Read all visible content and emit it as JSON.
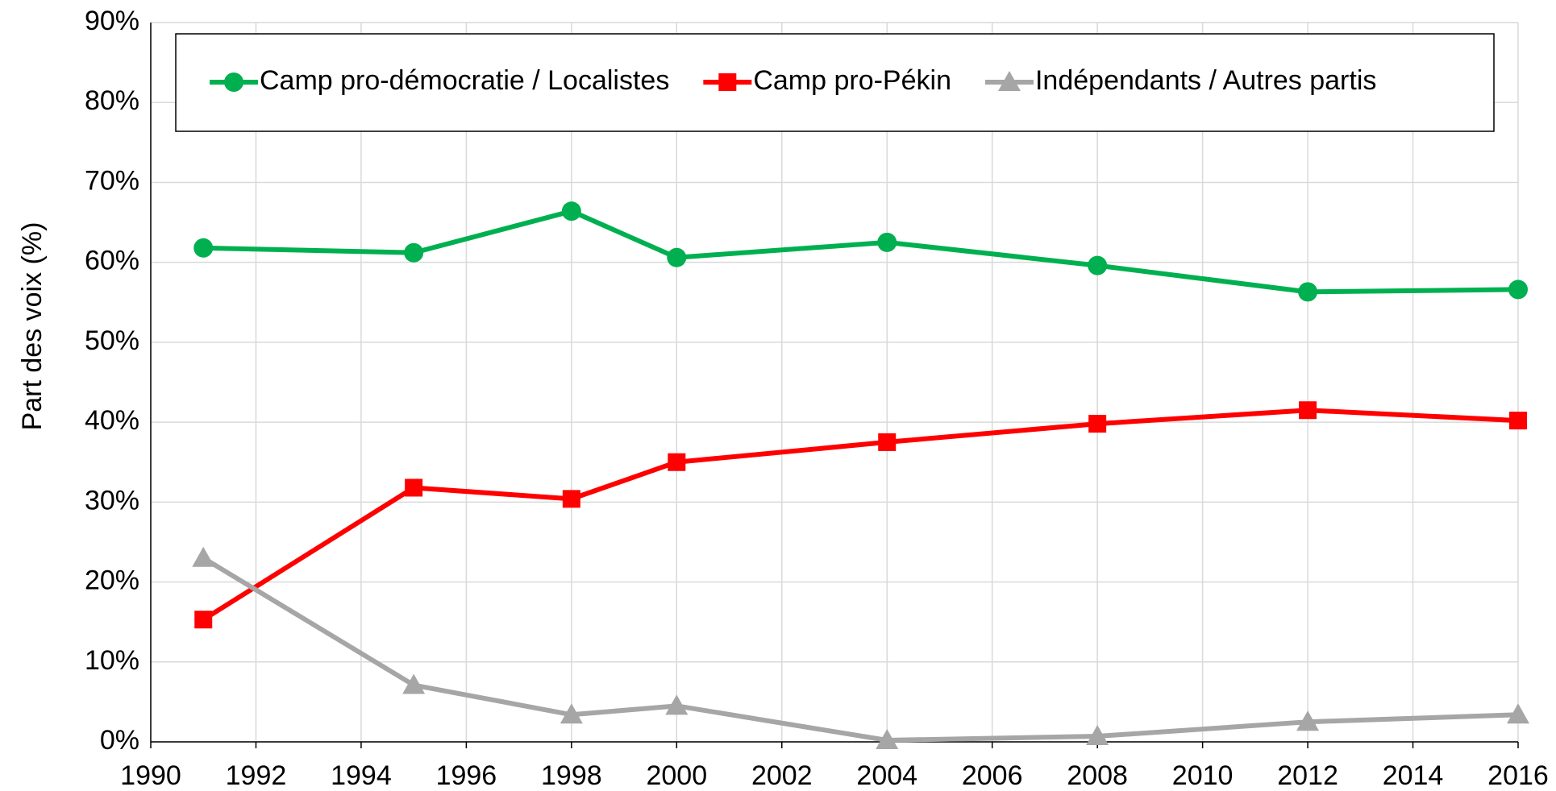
{
  "chart_data": {
    "type": "line",
    "y_label": "Part des voix (%)",
    "x": [
      1991,
      1995,
      1998,
      2000,
      2004,
      2008,
      2012,
      2016
    ],
    "series": [
      {
        "name": "Camp pro-démocratie / Localistes",
        "color": "#00b050",
        "marker": "circle",
        "values": [
          61.8,
          61.2,
          66.4,
          60.6,
          62.5,
          59.6,
          56.3,
          56.6
        ]
      },
      {
        "name": "Camp pro-Pékin",
        "color": "#ff0000",
        "marker": "square",
        "values": [
          15.3,
          31.8,
          30.4,
          35.0,
          37.5,
          39.8,
          41.5,
          40.2
        ]
      },
      {
        "name": "Indépendants / Autres partis",
        "color": "#a6a6a6",
        "marker": "triangle",
        "values": [
          23.0,
          7.1,
          3.4,
          4.5,
          0.2,
          0.7,
          2.5,
          3.4
        ]
      }
    ],
    "xlim": [
      1990,
      2016
    ],
    "xticks": [
      1990,
      1992,
      1994,
      1996,
      1998,
      2000,
      2002,
      2004,
      2006,
      2008,
      2010,
      2012,
      2014,
      2016
    ],
    "ylim": [
      0,
      90
    ],
    "yticks": [
      {
        "value": 0,
        "label": "0%"
      },
      {
        "value": 10,
        "label": "10%"
      },
      {
        "value": 20,
        "label": "20%"
      },
      {
        "value": 30,
        "label": "30%"
      },
      {
        "value": 40,
        "label": "40%"
      },
      {
        "value": 50,
        "label": "50%"
      },
      {
        "value": 60,
        "label": "60%"
      },
      {
        "value": 70,
        "label": "70%"
      },
      {
        "value": 80,
        "label": "80%"
      },
      {
        "value": 90,
        "label": "90%"
      }
    ],
    "grid": true,
    "legend": "top"
  }
}
